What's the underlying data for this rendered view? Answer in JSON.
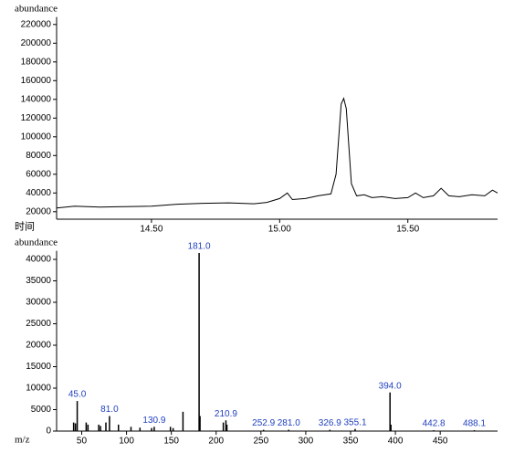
{
  "chart_data": [
    {
      "type": "line",
      "y_label": "abundance",
      "x_label": "时间",
      "color": "#000000",
      "x": [
        14.13,
        14.2,
        14.3,
        14.4,
        14.5,
        14.6,
        14.7,
        14.8,
        14.9,
        14.95,
        15.0,
        15.03,
        15.05,
        15.1,
        15.15,
        15.2,
        15.22,
        15.24,
        15.25,
        15.26,
        15.28,
        15.3,
        15.33,
        15.36,
        15.4,
        15.45,
        15.5,
        15.53,
        15.56,
        15.6,
        15.63,
        15.66,
        15.7,
        15.75,
        15.8,
        15.83,
        15.85
      ],
      "values": [
        24000,
        26000,
        25000,
        25500,
        26000,
        28000,
        29000,
        29500,
        28500,
        30000,
        34000,
        40000,
        33000,
        34000,
        37000,
        39000,
        60000,
        135000,
        141000,
        130000,
        50000,
        37000,
        38000,
        35000,
        36000,
        34000,
        35000,
        40000,
        35000,
        37000,
        45000,
        37000,
        36000,
        38000,
        37000,
        43000,
        40000
      ],
      "xlim": [
        14.13,
        15.85
      ],
      "xticks": [
        {
          "value": 14.5,
          "label": "14.50"
        },
        {
          "value": 15.0,
          "label": "15.00"
        },
        {
          "value": 15.5,
          "label": "15.50"
        }
      ],
      "ylim": [
        12000,
        228000
      ],
      "yticks": [
        20000,
        40000,
        60000,
        80000,
        100000,
        120000,
        140000,
        160000,
        180000,
        200000,
        220000
      ]
    },
    {
      "type": "bar",
      "y_label": "abundance",
      "x_label": "m/z",
      "color": "#000000",
      "label_color": "#1f3fbf",
      "x": [
        41,
        43,
        45.0,
        55,
        57,
        69,
        71,
        77,
        81.0,
        91,
        105,
        115,
        128,
        130.9,
        149,
        152,
        163,
        181.0,
        182,
        208,
        210.9,
        212,
        252.9,
        281.0,
        326.9,
        355.1,
        394.0,
        395,
        442.8,
        488.1
      ],
      "values": [
        2000,
        1800,
        7000,
        2000,
        1500,
        1500,
        1200,
        2000,
        3500,
        1500,
        1000,
        800,
        700,
        1000,
        1000,
        700,
        4500,
        41500,
        3500,
        2000,
        2500,
        1500,
        300,
        300,
        300,
        500,
        9000,
        1500,
        200,
        200
      ],
      "x_labels": [
        null,
        null,
        "45.0",
        null,
        null,
        null,
        null,
        null,
        "81.0",
        null,
        null,
        null,
        null,
        "130.9",
        null,
        null,
        null,
        "181.0",
        null,
        null,
        "210.9",
        null,
        "252.9",
        "281.0",
        "326.9",
        "355.1",
        "394.0",
        null,
        "442.8",
        "488.1"
      ],
      "xlim": [
        22,
        514
      ],
      "xticks": [
        50,
        100,
        150,
        200,
        250,
        300,
        350,
        400,
        450
      ],
      "ylim": [
        0,
        42000
      ],
      "yticks": [
        0,
        5000,
        10000,
        15000,
        20000,
        25000,
        30000,
        35000,
        40000
      ]
    }
  ]
}
